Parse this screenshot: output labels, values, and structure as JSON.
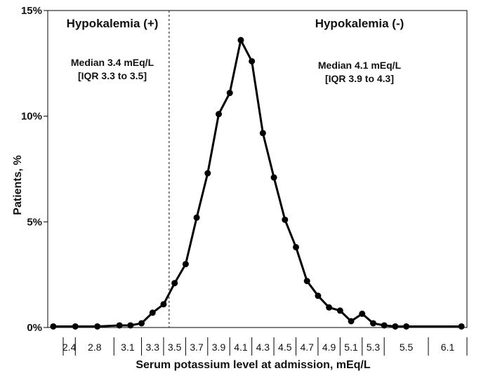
{
  "chart_data": {
    "type": "line",
    "xlabel": "Serum potassium level at admission,  mEq/L",
    "ylabel": "Patients, %",
    "x": [
      2.4,
      2.6,
      2.8,
      3.0,
      3.1,
      3.2,
      3.3,
      3.4,
      3.5,
      3.6,
      3.7,
      3.8,
      3.9,
      4.0,
      4.1,
      4.2,
      4.3,
      4.4,
      4.5,
      4.6,
      4.7,
      4.8,
      4.9,
      5.0,
      5.1,
      5.2,
      5.3,
      5.4,
      5.5,
      5.6,
      6.1
    ],
    "x_tick_labels": [
      "2.4",
      "2.8",
      "3.1",
      "3.3",
      "3.5",
      "3.7",
      "3.9",
      "4.1",
      "4.3",
      "4.5",
      "4.7",
      "4.9",
      "5.1",
      "5.3",
      "5.5",
      "6.1"
    ],
    "ylim": [
      0,
      15
    ],
    "y_ticks": [
      0,
      5,
      10,
      15
    ],
    "y_tick_labels": [
      "0%",
      "5%",
      "10%",
      "15%"
    ],
    "series": [
      {
        "values": [
          0.05,
          0.05,
          0.05,
          0.1,
          0.1,
          0.2,
          0.7,
          1.1,
          2.1,
          3.0,
          5.2,
          7.3,
          10.1,
          11.1,
          13.6,
          12.6,
          9.2,
          7.1,
          5.1,
          3.8,
          2.2,
          1.5,
          0.95,
          0.8,
          0.3,
          0.65,
          0.2,
          0.1,
          0.05,
          0.05,
          0.05
        ]
      }
    ],
    "divider_x": 3.45,
    "annotations": {
      "left_title": "Hypokalemia  (+)",
      "left_median": "Median 3.4 mEq/L",
      "left_iqr": "[IQR 3.3 to 3.5]",
      "right_title": "Hypokalemia  (-)",
      "right_median": "Median 4.1 mEq/L",
      "right_iqr": "[IQR 3.9 to 4.3]"
    },
    "grid": false,
    "legend": "none"
  }
}
